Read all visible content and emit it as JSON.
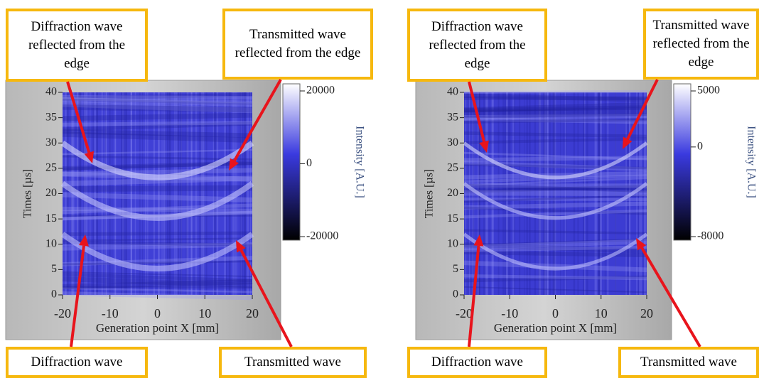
{
  "panels": [
    {
      "y_label": "Times [µs]",
      "x_label": "Generation point X [mm]",
      "xlim": [
        -20,
        20
      ],
      "xticks": [
        -20,
        -10,
        0,
        10,
        20
      ],
      "ylim": [
        0,
        40
      ],
      "yticks": [
        0,
        5,
        10,
        15,
        20,
        25,
        30,
        35,
        40
      ],
      "colorbar": {
        "label": "Intensity [A.U.]",
        "lim": [
          -20000,
          20000
        ],
        "ticks": [
          20000,
          0,
          -20000
        ]
      },
      "annotations": [
        "Diffraction wave reflected from the edge",
        "Transmitted wave reflected from the edge",
        "Diffraction wave",
        "Transmitted wave"
      ]
    },
    {
      "y_label": "Times [µs]",
      "x_label": "Generation point X [mm]",
      "xlim": [
        -20,
        20
      ],
      "xticks": [
        -20,
        -10,
        0,
        10,
        20
      ],
      "ylim": [
        0,
        40
      ],
      "yticks": [
        0,
        5,
        10,
        15,
        20,
        25,
        30,
        35,
        40
      ],
      "colorbar": {
        "label": "Intensity [A.U.]",
        "lim": [
          -8000,
          5000
        ],
        "ticks": [
          5000,
          0,
          -8000
        ]
      },
      "annotations": [
        "Diffraction wave reflected from the edge",
        "Transmitted wave reflected from the edge",
        "Diffraction wave",
        "Transmitted wave"
      ]
    }
  ]
}
